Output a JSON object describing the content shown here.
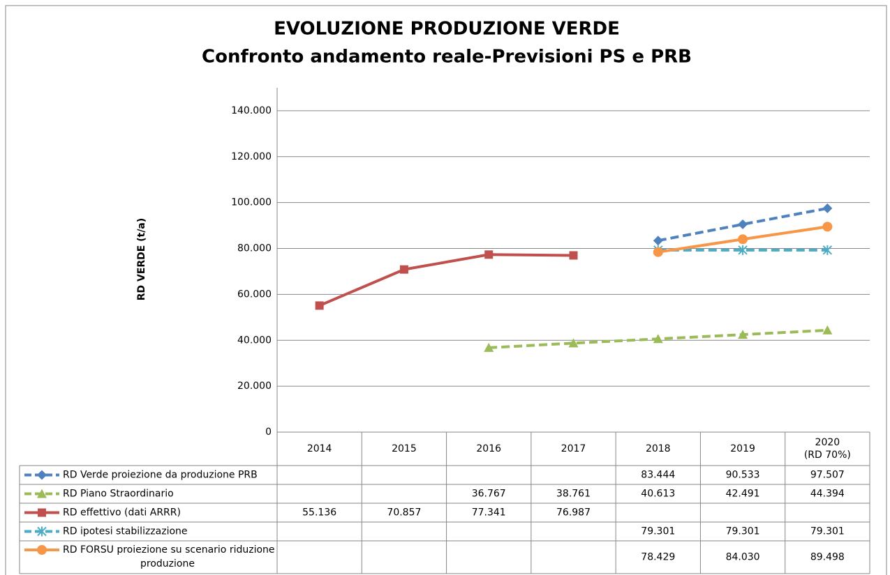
{
  "chart_data": {
    "type": "line",
    "title": "EVOLUZIONE PRODUZIONE VERDE",
    "subtitle": "Confronto andamento reale-Previsioni PS e PRB",
    "y_label": "RD VERDE (t/a)",
    "categories": [
      "2014",
      "2015",
      "2016",
      "2017",
      "2018",
      "2019",
      "2020\n(RD 70%)"
    ],
    "ylim": [
      0,
      150000
    ],
    "yticks": [
      0,
      {
        "value": 20000,
        "label": "20.000"
      },
      {
        "value": 40000,
        "label": "40.000"
      },
      {
        "value": 60000,
        "label": "60.000"
      },
      {
        "value": 80000,
        "label": "80.000"
      },
      {
        "value": 100000,
        "label": "100.000"
      },
      {
        "value": 120000,
        "label": "120.000"
      },
      {
        "value": 140000,
        "label": "140.000"
      }
    ],
    "grid": true,
    "data_table": true,
    "series": [
      {
        "name": "RD Verde proiezione da produzione PRB",
        "color": "#4f81bd",
        "dashed": true,
        "marker": "diamond",
        "values": [
          null,
          null,
          null,
          null,
          83444,
          90533,
          97507
        ],
        "value_labels": [
          null,
          null,
          null,
          null,
          "83.444",
          "90.533",
          "97.507"
        ]
      },
      {
        "name": "RD Piano Straordinario",
        "color": "#9bbb59",
        "dashed": true,
        "marker": "triangle",
        "values": [
          null,
          null,
          36767,
          38761,
          40613,
          42491,
          44394
        ],
        "value_labels": [
          null,
          null,
          "36.767",
          "38.761",
          "40.613",
          "42.491",
          "44.394"
        ]
      },
      {
        "name": "RD effettivo (dati ARRR)",
        "color": "#c0504d",
        "dashed": false,
        "marker": "square",
        "values": [
          55136,
          70857,
          77341,
          76987,
          null,
          null,
          null
        ],
        "value_labels": [
          "55.136",
          "70.857",
          "77.341",
          "76.987",
          null,
          null,
          null
        ]
      },
      {
        "name": "RD ipotesi stabilizzazione",
        "color": "#4bacc6",
        "dashed": true,
        "marker": "star",
        "values": [
          null,
          null,
          null,
          null,
          79301,
          79301,
          79301
        ],
        "value_labels": [
          null,
          null,
          null,
          null,
          "79.301",
          "79.301",
          "79.301"
        ]
      },
      {
        "name": "RD FORSU proiezione su scenario riduzione produzione",
        "color": "#f79646",
        "dashed": false,
        "marker": "circle",
        "values": [
          null,
          null,
          null,
          null,
          78429,
          84030,
          89498
        ],
        "value_labels": [
          null,
          null,
          null,
          null,
          "78.429",
          "84.030",
          "89.498"
        ]
      }
    ]
  }
}
